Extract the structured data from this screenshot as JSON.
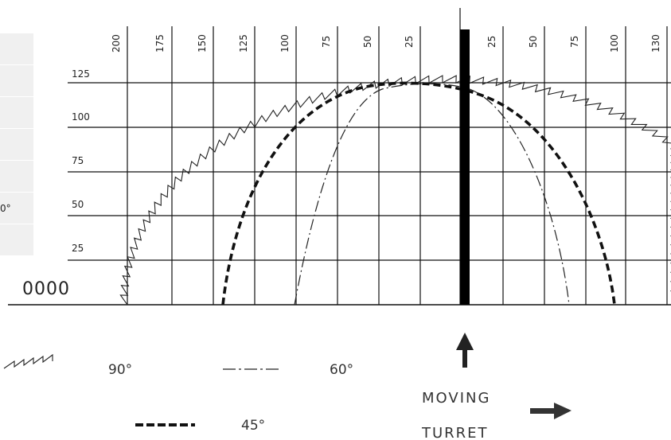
{
  "side_panel": {
    "rows": [
      "",
      "",
      "",
      "",
      "",
      "0°",
      ""
    ]
  },
  "diagram": {
    "top_ticks_left": [
      "200",
      "175",
      "150",
      "125",
      "100",
      "75",
      "50",
      "25"
    ],
    "top_ticks_right": [
      "25",
      "50",
      "75",
      "100",
      "130"
    ],
    "height_labels": [
      "125",
      "100",
      "75",
      "50",
      "25"
    ],
    "counter": "0000",
    "legend": {
      "deg90": "90°",
      "deg60": "60°",
      "deg45": "45°"
    },
    "caption": {
      "line1": "MOVING",
      "line2": "TURRET"
    }
  }
}
